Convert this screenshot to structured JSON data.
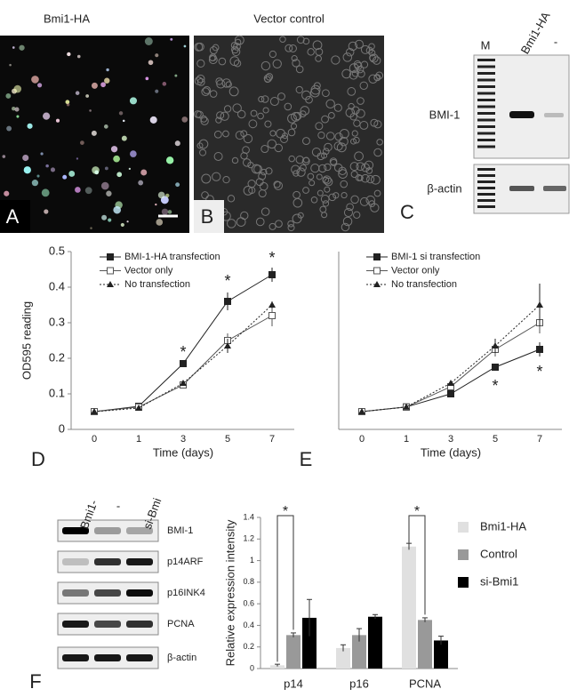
{
  "panels": {
    "A": {
      "title": "Bmi1-HA",
      "label": "A"
    },
    "B": {
      "title": "Vector control",
      "label": "B"
    },
    "C": {
      "marker_lane": "M",
      "lanes": [
        "Bmi1-HA",
        "-"
      ],
      "rows": [
        "BMI-1",
        "β-actin"
      ],
      "label": "C"
    },
    "F_blot": {
      "lanes": [
        "Bmi1-",
        "-",
        "si-Bmi"
      ],
      "rows": [
        "BMI-1",
        "p14ARF",
        "p16INK4",
        "PCNA",
        "β-actin"
      ],
      "label": "F"
    }
  },
  "chart_data": [
    {
      "type": "line",
      "panel_label": "D",
      "xlabel": "Time (days)",
      "ylabel": "OD595 reading",
      "categories": [
        "0",
        "1",
        "3",
        "5",
        "7"
      ],
      "ylim": [
        0,
        0.5
      ],
      "yticks": [
        0,
        0.1,
        0.2,
        0.3,
        0.4,
        0.5
      ],
      "annotations": [
        "*",
        "*",
        "*"
      ],
      "series": [
        {
          "name": "BMI-1-HA transfection",
          "color": "#222222",
          "marker": "square",
          "dash": false,
          "values": [
            0.05,
            0.065,
            0.185,
            0.36,
            0.435
          ],
          "errors": [
            0.003,
            0.005,
            0.008,
            0.025,
            0.02
          ]
        },
        {
          "name": "Vector only",
          "color": "#555555",
          "marker": "open-square",
          "dash": false,
          "values": [
            0.05,
            0.063,
            0.125,
            0.25,
            0.32
          ],
          "errors": [
            0.003,
            0.004,
            0.006,
            0.02,
            0.03
          ]
        },
        {
          "name": "No transfection",
          "color": "#222222",
          "marker": "triangle",
          "dash": true,
          "values": [
            0.05,
            0.06,
            0.13,
            0.235,
            0.35
          ],
          "errors": [
            0.003,
            0.004,
            0.005,
            0.02,
            0.01
          ]
        }
      ]
    },
    {
      "type": "line",
      "panel_label": "E",
      "xlabel": "Time (days)",
      "categories": [
        "0",
        "1",
        "3",
        "5",
        "7"
      ],
      "ylim": [
        0,
        0.5
      ],
      "annotations": [
        "*",
        "*"
      ],
      "series": [
        {
          "name": "BMI-1 si transfection",
          "color": "#222222",
          "marker": "square",
          "dash": false,
          "values": [
            0.05,
            0.063,
            0.1,
            0.175,
            0.225
          ],
          "errors": [
            0.003,
            0.004,
            0.005,
            0.01,
            0.02
          ]
        },
        {
          "name": "Vector only",
          "color": "#555555",
          "marker": "open-square",
          "dash": false,
          "values": [
            0.05,
            0.063,
            0.12,
            0.225,
            0.3
          ],
          "errors": [
            0.003,
            0.004,
            0.008,
            0.02,
            0.03
          ]
        },
        {
          "name": "No transfection",
          "color": "#222222",
          "marker": "triangle",
          "dash": true,
          "values": [
            0.05,
            0.063,
            0.13,
            0.235,
            0.35
          ],
          "errors": [
            0.003,
            0.004,
            0.006,
            0.02,
            0.06
          ]
        }
      ]
    },
    {
      "type": "bar",
      "ylabel": "Relative expression intensity",
      "categories": [
        "p14",
        "p16",
        "PCNA"
      ],
      "ylim": [
        0,
        1.4
      ],
      "yticks": [
        0,
        0.2,
        0.4,
        0.6,
        0.8,
        1,
        1.2,
        1.4
      ],
      "annotations": [
        "*",
        "*"
      ],
      "series": [
        {
          "name": "Bmi1-HA",
          "color": "#e0e0e0",
          "values": [
            0.03,
            0.19,
            1.13
          ],
          "errors": [
            0.01,
            0.03,
            0.03
          ]
        },
        {
          "name": "Control",
          "color": "#999999",
          "values": [
            0.31,
            0.31,
            0.45
          ],
          "errors": [
            0.02,
            0.06,
            0.02
          ]
        },
        {
          "name": "si-Bmi1",
          "color": "#000000",
          "values": [
            0.47,
            0.48,
            0.26
          ],
          "errors": [
            0.17,
            0.02,
            0.04
          ]
        }
      ]
    }
  ]
}
